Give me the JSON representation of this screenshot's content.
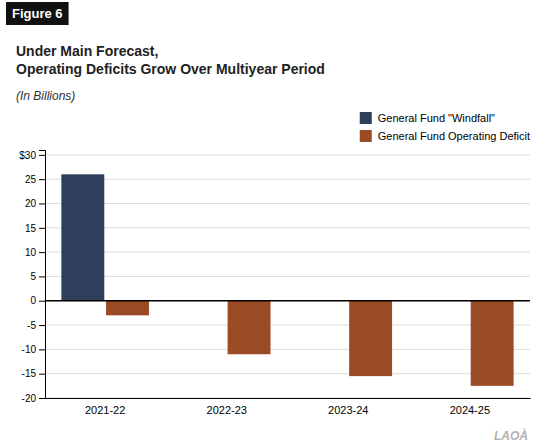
{
  "chart_data": {
    "type": "bar",
    "title": "Under Main Forecast,\nOperating Deficits Grow Over Multiyear Period",
    "subtitle": "(In Billions)",
    "annotations": [
      "Figure 6",
      "LAOÀ"
    ],
    "categories": [
      "2021-22",
      "2022-23",
      "2023-24",
      "2024-25"
    ],
    "series": [
      {
        "name": "General Fund \"Windfall\"",
        "color": "#2e3f5c",
        "values": [
          26.0,
          0,
          0,
          0
        ]
      },
      {
        "name": "General Fund Operating Deficit",
        "color": "#9b4a26",
        "values": [
          -3.0,
          -11.0,
          -15.5,
          -17.5
        ]
      }
    ],
    "ylim": [
      -20,
      31
    ],
    "yticks": [
      -20,
      -15,
      -10,
      -5,
      0,
      5,
      10,
      15,
      20,
      25,
      {
        "value": 30,
        "label": "$30"
      }
    ],
    "grid": true,
    "legend": "upper right"
  }
}
